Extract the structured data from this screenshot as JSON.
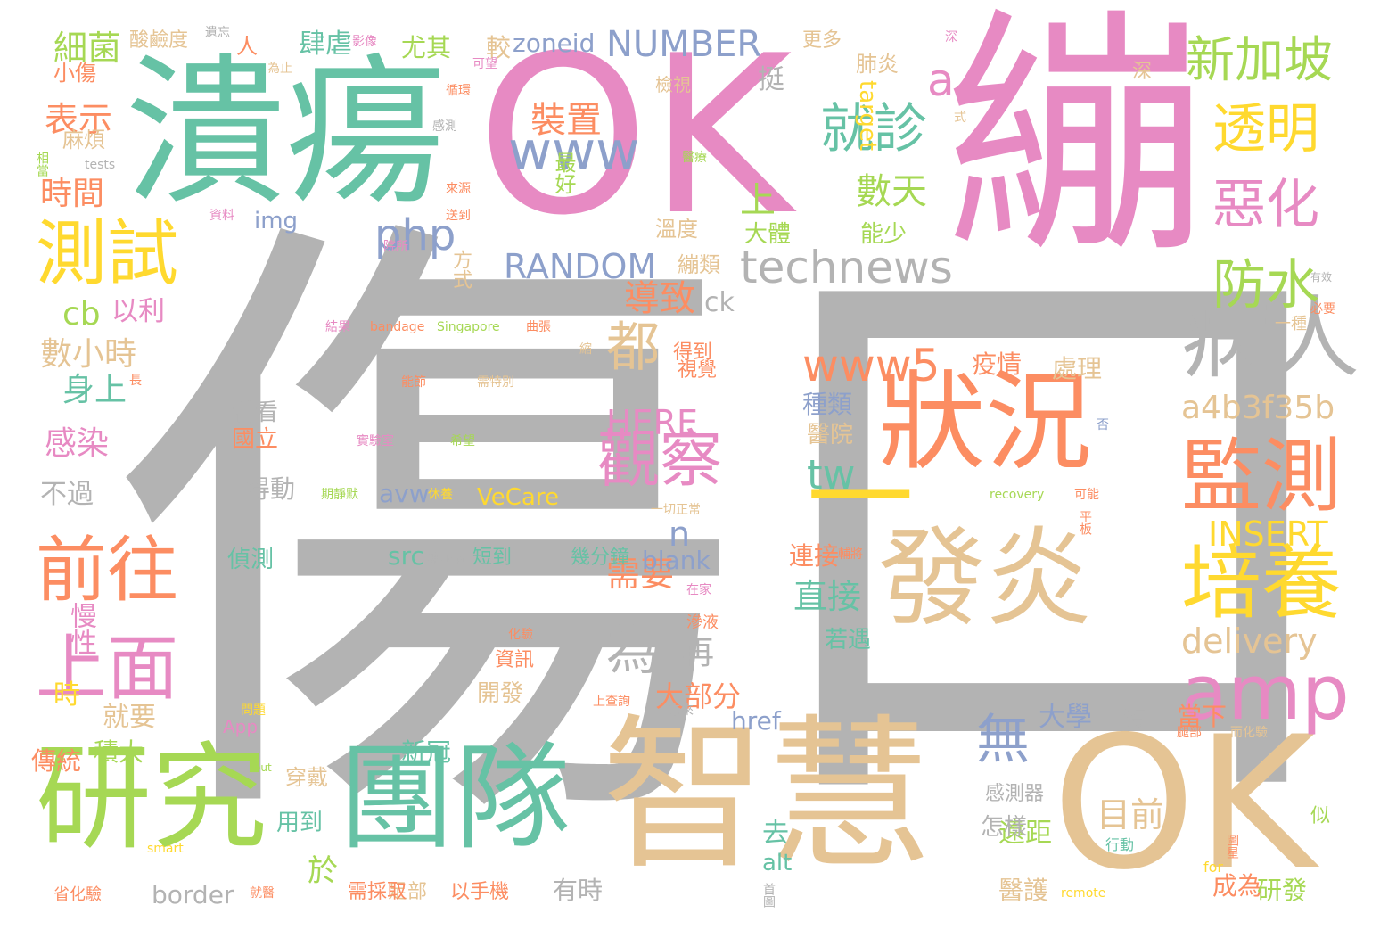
{
  "palette": {
    "gray": "#b3b3b3",
    "pink": "#e78ac3",
    "green": "#66c2a5",
    "orange": "#fc8d62",
    "lime": "#a6d854",
    "yellow": "#ffd92f",
    "tan": "#e5c494",
    "blue": "#8da0cb"
  },
  "words": [
    {
      "text": "傷口",
      "color": "gray"
    },
    {
      "text": "OK",
      "color": "pink"
    },
    {
      "text": "繃",
      "color": "pink"
    },
    {
      "text": "潰瘍",
      "color": "green"
    },
    {
      "text": "智慧",
      "color": "tan"
    },
    {
      "text": "OK",
      "color": "tan"
    },
    {
      "text": "研究",
      "color": "lime"
    },
    {
      "text": "團隊",
      "color": "green"
    },
    {
      "text": "狀況",
      "color": "orange"
    },
    {
      "text": "發炎",
      "color": "tan"
    },
    {
      "text": "一",
      "color": "yellow"
    },
    {
      "text": "病人",
      "color": "gray"
    },
    {
      "text": "監測",
      "color": "orange"
    },
    {
      "text": "培養",
      "color": "yellow"
    },
    {
      "text": "amp",
      "color": "pink"
    },
    {
      "text": "technews",
      "color": "gray"
    },
    {
      "text": "測試",
      "color": "yellow"
    },
    {
      "text": "前往",
      "color": "orange"
    },
    {
      "text": "上面",
      "color": "pink"
    },
    {
      "text": "觀察",
      "color": "pink"
    },
    {
      "text": "就診",
      "color": "green"
    },
    {
      "text": "透明",
      "color": "yellow"
    },
    {
      "text": "惡化",
      "color": "pink"
    },
    {
      "text": "防水",
      "color": "lime"
    },
    {
      "text": "新加坡",
      "color": "lime"
    },
    {
      "text": "都",
      "color": "tan"
    },
    {
      "text": "為",
      "color": "gray"
    },
    {
      "text": "無",
      "color": "blue"
    },
    {
      "text": "www",
      "color": "blue"
    },
    {
      "text": "www5",
      "color": "orange"
    },
    {
      "text": "NUMBER",
      "color": "blue"
    },
    {
      "text": "RANDOM",
      "color": "blue"
    },
    {
      "text": "php",
      "color": "blue"
    },
    {
      "text": "a",
      "color": "pink"
    },
    {
      "text": "裝置",
      "color": "orange"
    },
    {
      "text": "數天",
      "color": "lime"
    },
    {
      "text": "上",
      "color": "lime"
    },
    {
      "text": "導致",
      "color": "orange"
    },
    {
      "text": "tw",
      "color": "green"
    },
    {
      "text": "n",
      "color": "blue"
    },
    {
      "text": "HERE",
      "color": "pink"
    },
    {
      "text": "a4b3f35b",
      "color": "tan"
    },
    {
      "text": "INSERT",
      "color": "yellow"
    },
    {
      "text": "delivery",
      "color": "tan"
    },
    {
      "text": "需要",
      "color": "orange"
    },
    {
      "text": "直接",
      "color": "green"
    },
    {
      "text": "目前",
      "color": "tan"
    },
    {
      "text": "細菌",
      "color": "lime"
    },
    {
      "text": "表示",
      "color": "orange"
    },
    {
      "text": "時間",
      "color": "orange"
    },
    {
      "text": "數小時",
      "color": "tan"
    },
    {
      "text": "身上",
      "color": "green"
    },
    {
      "text": "感染",
      "color": "pink"
    },
    {
      "text": "cb",
      "color": "lime"
    },
    {
      "text": "以利",
      "color": "pink"
    },
    {
      "text": "不過",
      "color": "gray"
    },
    {
      "text": "慢性",
      "color": "pink"
    },
    {
      "text": "時",
      "color": "yellow"
    },
    {
      "text": "傳統",
      "color": "orange"
    },
    {
      "text": "就要",
      "color": "tan"
    },
    {
      "text": "積大",
      "color": "lime"
    },
    {
      "text": "小傷",
      "color": "orange"
    },
    {
      "text": "麻煩",
      "color": "tan"
    },
    {
      "text": "酸鹼度",
      "color": "tan"
    },
    {
      "text": "人",
      "color": "orange"
    },
    {
      "text": "肆虐",
      "color": "green"
    },
    {
      "text": "尤其",
      "color": "lime"
    },
    {
      "text": "較",
      "color": "tan"
    },
    {
      "text": "zoneid",
      "color": "blue"
    },
    {
      "text": "img",
      "color": "blue"
    },
    {
      "text": "最好",
      "color": "lime"
    },
    {
      "text": "方式",
      "color": "tan"
    },
    {
      "text": "挺",
      "color": "gray"
    },
    {
      "text": "肺炎",
      "color": "tan"
    },
    {
      "text": "target",
      "color": "yellow"
    },
    {
      "text": "更多",
      "color": "tan"
    },
    {
      "text": "深",
      "color": "tan"
    },
    {
      "text": "檢視",
      "color": "tan"
    },
    {
      "text": "溫度",
      "color": "tan"
    },
    {
      "text": "大體",
      "color": "lime"
    },
    {
      "text": "能少",
      "color": "lime"
    },
    {
      "text": "繃類",
      "color": "tan"
    },
    {
      "text": "ck",
      "color": "gray"
    },
    {
      "text": "得到",
      "color": "orange"
    },
    {
      "text": "疫情",
      "color": "orange"
    },
    {
      "text": "處理",
      "color": "tan"
    },
    {
      "text": "種類",
      "color": "blue"
    },
    {
      "text": "醫院",
      "color": "tan"
    },
    {
      "text": "視覺",
      "color": "orange"
    },
    {
      "text": "看看",
      "color": "gray"
    },
    {
      "text": "國立",
      "color": "orange"
    },
    {
      "text": "得動",
      "color": "gray"
    },
    {
      "text": "avw",
      "color": "blue"
    },
    {
      "text": "VeCare",
      "color": "yellow"
    },
    {
      "text": "src",
      "color": "green"
    },
    {
      "text": "blank",
      "color": "blue"
    },
    {
      "text": "偵測",
      "color": "green"
    },
    {
      "text": "短到",
      "color": "green"
    },
    {
      "text": "幾分鐘",
      "color": "green"
    },
    {
      "text": "再",
      "color": "gray"
    },
    {
      "text": "大部分",
      "color": "orange"
    },
    {
      "text": "開發",
      "color": "tan"
    },
    {
      "text": "資訊",
      "color": "orange"
    },
    {
      "text": "href",
      "color": "blue"
    },
    {
      "text": "新冠",
      "color": "green"
    },
    {
      "text": "穿戴",
      "color": "tan"
    },
    {
      "text": "用到",
      "color": "green"
    },
    {
      "text": "border",
      "color": "gray"
    },
    {
      "text": "於",
      "color": "lime"
    },
    {
      "text": "去",
      "color": "green"
    },
    {
      "text": "alt",
      "color": "green"
    },
    {
      "text": "有時",
      "color": "gray"
    },
    {
      "text": "連接",
      "color": "orange"
    },
    {
      "text": "若遇",
      "color": "green"
    },
    {
      "text": "遠距",
      "color": "lime"
    },
    {
      "text": "醫護",
      "color": "tan"
    },
    {
      "text": "怎樣",
      "color": "gray"
    },
    {
      "text": "感測器",
      "color": "gray"
    },
    {
      "text": "大學",
      "color": "blue"
    },
    {
      "text": "沒",
      "color": "gray"
    },
    {
      "text": "當下",
      "color": "orange"
    },
    {
      "text": "成為",
      "color": "orange"
    },
    {
      "text": "研發",
      "color": "lime"
    },
    {
      "text": "似",
      "color": "lime"
    },
    {
      "text": "行動",
      "color": "green"
    },
    {
      "text": "for",
      "color": "yellow"
    },
    {
      "text": "remote",
      "color": "yellow"
    },
    {
      "text": "以手機",
      "color": "orange"
    },
    {
      "text": "足部",
      "color": "tan"
    },
    {
      "text": "需採取",
      "color": "orange"
    },
    {
      "text": "就醫",
      "color": "orange"
    },
    {
      "text": "省化驗",
      "color": "orange"
    },
    {
      "text": "smart",
      "color": "yellow"
    },
    {
      "text": "out",
      "color": "lime"
    },
    {
      "text": "App",
      "color": "pink"
    },
    {
      "text": "問題",
      "color": "yellow"
    },
    {
      "text": "上查詢",
      "color": "orange"
    },
    {
      "text": "未來",
      "color": "gray"
    },
    {
      "text": "化驗",
      "color": "orange"
    },
    {
      "text": "滲液",
      "color": "orange"
    },
    {
      "text": "在家",
      "color": "pink"
    },
    {
      "text": "糖尿病",
      "color": "gray"
    },
    {
      "text": "休養",
      "color": "yellow"
    },
    {
      "text": "期靜默",
      "color": "lime"
    },
    {
      "text": "一切正常",
      "color": "tan"
    },
    {
      "text": "可能",
      "color": "orange"
    },
    {
      "text": "平板",
      "color": "orange"
    },
    {
      "text": "recovery",
      "color": "lime"
    },
    {
      "text": "否",
      "color": "blue"
    },
    {
      "text": "實驗室",
      "color": "pink"
    },
    {
      "text": "希望",
      "color": "lime"
    },
    {
      "text": "能節",
      "color": "orange"
    },
    {
      "text": "需特別",
      "color": "tan"
    },
    {
      "text": "長",
      "color": "orange"
    },
    {
      "text": "縮",
      "color": "tan"
    },
    {
      "text": "結果",
      "color": "pink"
    },
    {
      "text": "bandage",
      "color": "orange"
    },
    {
      "text": "Singapore",
      "color": "lime"
    },
    {
      "text": "曲張",
      "color": "orange"
    },
    {
      "text": "一種",
      "color": "tan"
    },
    {
      "text": "必要",
      "color": "orange"
    },
    {
      "text": "有效",
      "color": "gray"
    },
    {
      "text": "醫療",
      "color": "lime"
    },
    {
      "text": "送到",
      "color": "orange"
    },
    {
      "text": "來源",
      "color": "orange"
    },
    {
      "text": "院所",
      "color": "pink"
    },
    {
      "text": "資料",
      "color": "pink"
    },
    {
      "text": "相當",
      "color": "lime"
    },
    {
      "text": "tests",
      "color": "gray"
    },
    {
      "text": "感測",
      "color": "gray"
    },
    {
      "text": "式",
      "color": "tan"
    },
    {
      "text": "循環",
      "color": "orange"
    },
    {
      "text": "可望",
      "color": "pink"
    },
    {
      "text": "為止",
      "color": "tan"
    },
    {
      "text": "影像",
      "color": "pink"
    },
    {
      "text": "遺忘",
      "color": "gray"
    },
    {
      "text": "深",
      "color": "pink"
    },
    {
      "text": "腿部",
      "color": "orange"
    },
    {
      "text": "而化驗",
      "color": "tan"
    },
    {
      "text": "圖星",
      "color": "orange"
    },
    {
      "text": "首圖",
      "color": "gray"
    },
    {
      "text": "輔將",
      "color": "orange"
    }
  ]
}
